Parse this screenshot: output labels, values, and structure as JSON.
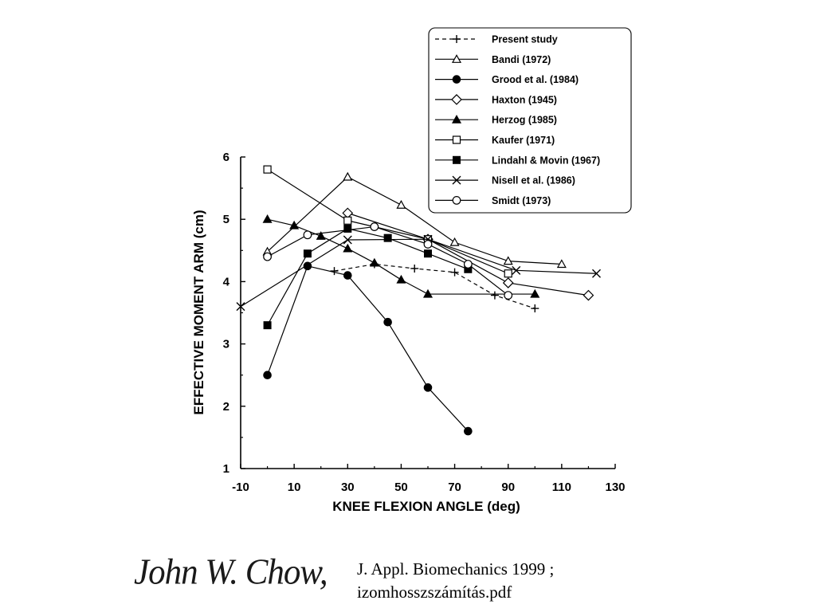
{
  "chart_data": {
    "type": "line",
    "xlabel": "KNEE FLEXION ANGLE (deg)",
    "ylabel": "EFFECTIVE MOMENT ARM (cm)",
    "xlim": [
      -10,
      130
    ],
    "ylim": [
      1,
      6
    ],
    "xticks": [
      "-10",
      "10",
      "30",
      "50",
      "70",
      "90",
      "110",
      "130"
    ],
    "yticks": [
      "1",
      "2",
      "3",
      "4",
      "5",
      "6"
    ],
    "legend_position": "top-right",
    "grid": false,
    "series": [
      {
        "name": "Present study",
        "marker": "plus",
        "dashed": true,
        "x": [
          25,
          40,
          55,
          70,
          85,
          100
        ],
        "y": [
          4.17,
          4.28,
          4.21,
          4.15,
          3.78,
          3.57
        ]
      },
      {
        "name": "Bandi (1972)",
        "marker": "triangle-open",
        "x": [
          0,
          30,
          50,
          70,
          90,
          110
        ],
        "y": [
          4.48,
          5.68,
          5.23,
          4.63,
          4.33,
          4.28
        ]
      },
      {
        "name": "Grood et al. (1984)",
        "marker": "circle-filled",
        "x": [
          0,
          15,
          30,
          45,
          60,
          75
        ],
        "y": [
          2.5,
          4.25,
          4.1,
          3.35,
          2.3,
          1.6
        ]
      },
      {
        "name": "Haxton (1945)",
        "marker": "diamond-open",
        "x": [
          30,
          60,
          90,
          120
        ],
        "y": [
          5.1,
          4.68,
          3.98,
          3.78
        ]
      },
      {
        "name": "Herzog (1985)",
        "marker": "triangle-filled",
        "x": [
          0,
          10,
          20,
          30,
          40,
          50,
          60,
          100
        ],
        "y": [
          5.0,
          4.9,
          4.73,
          4.53,
          4.3,
          4.03,
          3.8,
          3.8
        ]
      },
      {
        "name": "Kaufer (1971)",
        "marker": "square-open",
        "x": [
          0,
          30,
          60,
          90
        ],
        "y": [
          5.8,
          4.98,
          4.68,
          4.13
        ]
      },
      {
        "name": "Lindahl & Movin (1967)",
        "marker": "square-filled",
        "x": [
          0,
          15,
          30,
          45,
          60,
          75
        ],
        "y": [
          3.3,
          4.45,
          4.85,
          4.7,
          4.45,
          4.2
        ]
      },
      {
        "name": "Nisell et al. (1986)",
        "marker": "x",
        "x": [
          -10,
          30,
          60,
          93,
          123
        ],
        "y": [
          3.6,
          4.67,
          4.68,
          4.18,
          4.13
        ]
      },
      {
        "name": "Smidt (1973)",
        "marker": "circle-open",
        "x": [
          0,
          15,
          40,
          60,
          75,
          90
        ],
        "y": [
          4.4,
          4.75,
          4.88,
          4.6,
          4.28,
          3.78
        ]
      }
    ]
  },
  "footer": {
    "author": "John W. Chow,",
    "citation_line1": "J. Appl. Biomechanics 1999 ;",
    "citation_line2": "izomhosszszámítás.pdf"
  }
}
